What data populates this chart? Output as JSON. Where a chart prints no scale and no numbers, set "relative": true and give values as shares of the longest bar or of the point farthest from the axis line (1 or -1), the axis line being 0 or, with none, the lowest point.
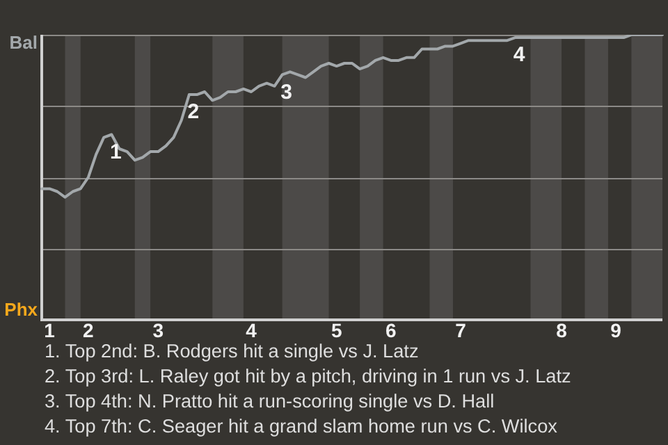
{
  "chart_data": {
    "type": "line",
    "relative": true,
    "grid": "y",
    "marker": "none",
    "line_style": "solid",
    "legend": false,
    "categories": [
      null,
      "1",
      null,
      null,
      null,
      null,
      "2",
      null,
      null,
      null,
      null,
      null,
      null,
      null,
      null,
      "3",
      null,
      null,
      null,
      null,
      null,
      null,
      null,
      null,
      null,
      null,
      null,
      "4",
      null,
      null,
      null,
      null,
      null,
      null,
      null,
      null,
      null,
      null,
      "5",
      null,
      null,
      null,
      null,
      null,
      null,
      "6",
      null,
      null,
      null,
      null,
      null,
      null,
      null,
      null,
      "7",
      null,
      null,
      null,
      null,
      null,
      null,
      null,
      null,
      null,
      null,
      null,
      null,
      "8",
      null,
      null,
      null,
      null,
      null,
      null,
      "9",
      null,
      null,
      null,
      null,
      null,
      null
    ],
    "series": [
      {
        "color": "#a3a8ab",
        "values": [
          0.46,
          0.46,
          0.45,
          0.43,
          0.45,
          0.46,
          0.5,
          0.58,
          0.64,
          0.65,
          0.6,
          0.59,
          0.56,
          0.57,
          0.59,
          0.59,
          0.61,
          0.64,
          0.7,
          0.79,
          0.79,
          0.8,
          0.77,
          0.78,
          0.8,
          0.8,
          0.81,
          0.8,
          0.82,
          0.83,
          0.82,
          0.86,
          0.87,
          0.86,
          0.85,
          0.87,
          0.89,
          0.9,
          0.89,
          0.9,
          0.9,
          0.88,
          0.89,
          0.91,
          0.92,
          0.91,
          0.91,
          0.92,
          0.92,
          0.95,
          0.95,
          0.95,
          0.96,
          0.96,
          0.97,
          0.98,
          0.98,
          0.98,
          0.98,
          0.98,
          0.98,
          0.99,
          0.99,
          0.99,
          0.99,
          0.99,
          0.99,
          0.99,
          0.99,
          0.99,
          0.99,
          0.99,
          0.99,
          0.99,
          0.99,
          0.99,
          1.0,
          1.0,
          1.0,
          1.0,
          1.0
        ],
        "colors": [
          "#a3a8ab",
          "#a3a8ab",
          "#a3a8ab",
          "#f5a81c",
          "#f5a81c",
          "#a3a8ab",
          "#a3a8ab",
          "#a3a8ab",
          "#a3a8ab",
          "#a3a8ab",
          "#a3a8ab",
          "#a3a8ab",
          "#f5a81c",
          "#f5a81c",
          "#a3a8ab",
          "#a3a8ab",
          "#a3a8ab",
          "#a3a8ab",
          "#a3a8ab",
          "#a3a8ab",
          "#a3a8ab",
          "#a3a8ab",
          "#f5a81c",
          "#f5a81c",
          "#f5a81c",
          "#f5a81c",
          "#a3a8ab",
          "#a3a8ab",
          "#a3a8ab",
          "#a3a8ab",
          "#a3a8ab",
          "#f5a81c",
          "#f5a81c",
          "#f5a81c",
          "#f5a81c",
          "#f5a81c",
          "#f5a81c",
          "#a3a8ab",
          "#a3a8ab",
          "#a3a8ab",
          "#a3a8ab",
          "#f5a81c",
          "#f5a81c",
          "#f5a81c",
          "#a3a8ab",
          "#a3a8ab",
          "#a3a8ab",
          "#a3a8ab",
          "#a3a8ab",
          "#a3a8ab",
          "#f5a81c",
          "#f5a81c",
          "#f5a81c",
          "#a3a8ab",
          "#a3a8ab",
          "#a3a8ab",
          "#a3a8ab",
          "#a3a8ab",
          "#a3a8ab",
          "#a3a8ab",
          "#a3a8ab",
          "#a3a8ab",
          "#a3a8ab",
          "#f5a81c",
          "#f5a81c",
          "#f5a81c",
          "#f5a81c",
          "#a3a8ab",
          "#a3a8ab",
          "#a3a8ab",
          "#f5a81c",
          "#f5a81c",
          "#f5a81c",
          "#a3a8ab",
          "#a3a8ab",
          "#a3a8ab",
          "#f5a81c",
          "#f5a81c",
          "#f5a81c",
          "#f5a81c",
          "#f5a81c"
        ]
      }
    ],
    "annotations": [
      "Bal",
      "Phx",
      {
        "text": "1",
        "y": 0.65
      },
      {
        "text": "2",
        "y": 0.79
      },
      {
        "text": "3",
        "y": 0.86
      },
      {
        "text": "4",
        "y": 0.99
      },
      "1. Top 2nd: B. Rodgers hit a single vs J. Latz",
      "2. Top 3rd: L. Raley got hit by a pitch, driving in 1 run vs J. Latz",
      "3. Top 4th: N. Pratto hit a run-scoring single vs D. Hall",
      "4. Top 7th: C. Seager hit a grand slam home run vs C. Wilcox"
    ]
  }
}
